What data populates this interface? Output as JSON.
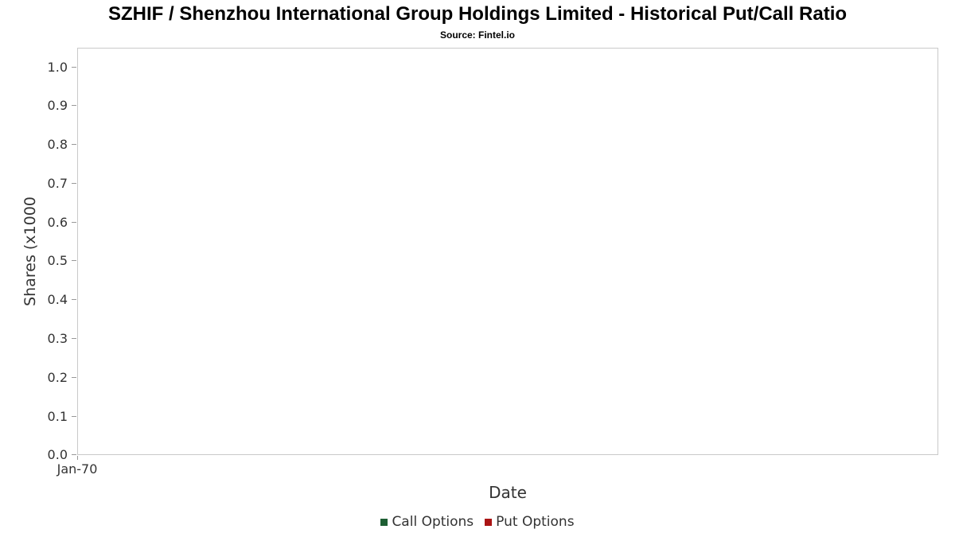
{
  "title": "SZHIF / Shenzhou International Group Holdings Limited - Historical Put/Call Ratio",
  "source": "Source: Fintel.io",
  "chart_data": {
    "type": "line",
    "title": "SZHIF / Shenzhou International Group Holdings Limited - Historical Put/Call Ratio",
    "subtitle": "Source: Fintel.io",
    "xlabel": "Date",
    "ylabel": "Shares (x1000",
    "ylim": [
      0.0,
      1.05
    ],
    "yticks": [
      "1.0",
      "0.9",
      "0.8",
      "0.7",
      "0.6",
      "0.5",
      "0.4",
      "0.3",
      "0.2",
      "0.1",
      "0.0"
    ],
    "xticks": [
      "Jan-70"
    ],
    "grid": false,
    "legend_position": "bottom",
    "series": [
      {
        "name": "Call Options",
        "color": "#1d5e33",
        "x": [],
        "values": []
      },
      {
        "name": "Put Options",
        "color": "#aa1414",
        "x": [],
        "values": []
      }
    ]
  }
}
